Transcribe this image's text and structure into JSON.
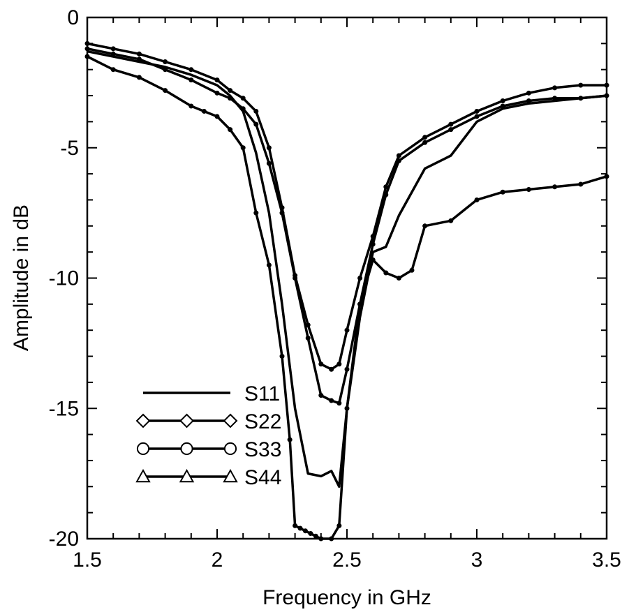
{
  "chart_data": {
    "type": "line",
    "xlabel": "Frequency in GHz",
    "ylabel": "Amplitude in dB",
    "xlim": [
      1.5,
      3.5
    ],
    "ylim": [
      -20,
      0
    ],
    "xticks": [
      1.5,
      2,
      2.5,
      3,
      3.5
    ],
    "xtick_labels": [
      "1.5",
      "2",
      "2.5",
      "3",
      "3.5"
    ],
    "yticks": [
      0,
      -5,
      -10,
      -15,
      -20
    ],
    "ytick_labels": [
      "0",
      "-5",
      "-10",
      "-15",
      "-20"
    ],
    "grid": false,
    "legend_position": "bottom-left",
    "series": [
      {
        "name": "S11",
        "marker": "none",
        "x": [
          1.5,
          1.6,
          1.7,
          1.8,
          1.9,
          2.0,
          2.05,
          2.1,
          2.15,
          2.2,
          2.25,
          2.3,
          2.35,
          2.4,
          2.44,
          2.47,
          2.5,
          2.55,
          2.6,
          2.65,
          2.7,
          2.8,
          2.9,
          3.0,
          3.1,
          3.2,
          3.3,
          3.4,
          3.5
        ],
        "y": [
          -1.3,
          -1.5,
          -1.7,
          -1.9,
          -2.2,
          -2.6,
          -3.0,
          -3.6,
          -5.2,
          -7.5,
          -11.0,
          -15.0,
          -17.5,
          -17.6,
          -17.4,
          -18.0,
          -15.0,
          -11.5,
          -9.0,
          -8.8,
          -7.6,
          -5.8,
          -5.3,
          -4.0,
          -3.5,
          -3.3,
          -3.2,
          -3.1,
          -3.0
        ]
      },
      {
        "name": "S22",
        "marker": "diamond",
        "x": [
          1.5,
          1.6,
          1.7,
          1.8,
          1.9,
          1.95,
          2.0,
          2.05,
          2.1,
          2.15,
          2.2,
          2.25,
          2.28,
          2.3,
          2.32,
          2.34,
          2.36,
          2.38,
          2.4,
          2.44,
          2.47,
          2.5,
          2.55,
          2.6,
          2.65,
          2.7,
          2.75,
          2.8,
          2.9,
          3.0,
          3.1,
          3.2,
          3.3,
          3.4,
          3.5
        ],
        "y": [
          -1.5,
          -2.0,
          -2.3,
          -2.8,
          -3.4,
          -3.6,
          -3.8,
          -4.3,
          -5.0,
          -7.5,
          -9.5,
          -13.0,
          -16.2,
          -19.5,
          -19.6,
          -19.7,
          -19.8,
          -19.9,
          -20.0,
          -20.0,
          -19.5,
          -15.0,
          -11.0,
          -9.3,
          -9.8,
          -10.0,
          -9.7,
          -8.0,
          -7.8,
          -7.0,
          -6.7,
          -6.6,
          -6.5,
          -6.4,
          -6.1
        ]
      },
      {
        "name": "S33",
        "marker": "circle",
        "x": [
          1.5,
          1.6,
          1.7,
          1.8,
          1.9,
          2.0,
          2.05,
          2.1,
          2.15,
          2.2,
          2.25,
          2.3,
          2.35,
          2.4,
          2.44,
          2.47,
          2.5,
          2.55,
          2.6,
          2.65,
          2.7,
          2.8,
          2.9,
          3.0,
          3.1,
          3.2,
          3.3,
          3.4,
          3.5
        ],
        "y": [
          -1.2,
          -1.4,
          -1.6,
          -2.0,
          -2.4,
          -2.9,
          -3.1,
          -3.5,
          -4.1,
          -5.6,
          -7.5,
          -10.0,
          -12.3,
          -14.5,
          -14.7,
          -14.8,
          -13.5,
          -11.0,
          -8.7,
          -6.8,
          -5.5,
          -4.8,
          -4.3,
          -3.8,
          -3.4,
          -3.2,
          -3.1,
          -3.1,
          -3.0
        ]
      },
      {
        "name": "S44",
        "marker": "triangle",
        "x": [
          1.5,
          1.6,
          1.7,
          1.8,
          1.9,
          2.0,
          2.05,
          2.1,
          2.15,
          2.2,
          2.25,
          2.3,
          2.35,
          2.4,
          2.44,
          2.47,
          2.5,
          2.55,
          2.6,
          2.65,
          2.7,
          2.8,
          2.9,
          3.0,
          3.1,
          3.2,
          3.3,
          3.4,
          3.5
        ],
        "y": [
          -1.0,
          -1.2,
          -1.4,
          -1.7,
          -2.0,
          -2.4,
          -2.8,
          -3.1,
          -3.6,
          -5.0,
          -7.3,
          -9.9,
          -11.8,
          -13.3,
          -13.5,
          -13.3,
          -12.0,
          -10.0,
          -8.4,
          -6.5,
          -5.3,
          -4.6,
          -4.1,
          -3.6,
          -3.2,
          -2.9,
          -2.7,
          -2.6,
          -2.6
        ]
      }
    ]
  }
}
